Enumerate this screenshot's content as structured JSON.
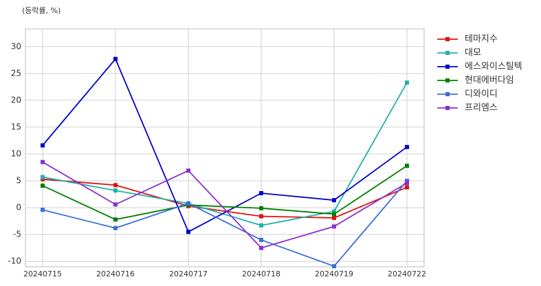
{
  "chart_data": {
    "type": "line",
    "y_label": "(등락률, %)",
    "categories": [
      "20240715",
      "20240716",
      "20240717",
      "20240718",
      "20240719",
      "20240722"
    ],
    "series": [
      {
        "name": "테마지수",
        "color": "#e01010",
        "values": [
          5.3,
          4.2,
          0.3,
          -1.6,
          -1.9,
          3.8
        ]
      },
      {
        "name": "대모",
        "color": "#20b2aa",
        "values": [
          5.7,
          3.2,
          0.8,
          -3.3,
          -0.7,
          23.3
        ]
      },
      {
        "name": "에스와이스틸텍",
        "color": "#0000cd",
        "values": [
          11.6,
          27.7,
          -4.5,
          2.7,
          1.4,
          11.3
        ]
      },
      {
        "name": "현대에버다임",
        "color": "#008000",
        "values": [
          4.1,
          -2.2,
          0.5,
          -0.1,
          -1.2,
          7.8
        ]
      },
      {
        "name": "디와이디",
        "color": "#3a6fd8",
        "values": [
          -0.4,
          -3.8,
          0.8,
          -6.0,
          -10.9,
          5.0
        ]
      },
      {
        "name": "프리엠스",
        "color": "#8b2fd0",
        "values": [
          8.5,
          0.6,
          6.9,
          -7.5,
          -3.5,
          4.6
        ]
      }
    ],
    "ylim": [
      -11,
      33.3
    ],
    "yticks": [
      -10,
      -5,
      0,
      5,
      10,
      15,
      20,
      25,
      30
    ],
    "grid": true,
    "legend": "outside-right"
  }
}
